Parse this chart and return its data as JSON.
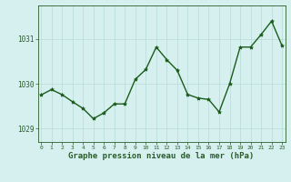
{
  "x": [
    0,
    1,
    2,
    3,
    4,
    5,
    6,
    7,
    8,
    9,
    10,
    11,
    12,
    13,
    14,
    15,
    16,
    17,
    18,
    19,
    20,
    21,
    22,
    23
  ],
  "y": [
    1029.75,
    1029.87,
    1029.76,
    1029.6,
    1029.45,
    1029.22,
    1029.35,
    1029.55,
    1029.55,
    1030.1,
    1030.32,
    1030.82,
    1030.54,
    1030.3,
    1029.76,
    1029.68,
    1029.65,
    1029.37,
    1030.0,
    1030.82,
    1030.82,
    1031.1,
    1031.4,
    1030.85
  ],
  "line_color": "#1a5c1a",
  "marker": "*",
  "marker_size": 3,
  "bg_color": "#d6f0f0",
  "grid_color": "#b8dada",
  "axis_color": "#2a5c2a",
  "xlabel": "Graphe pression niveau de la mer (hPa)",
  "xlabel_fontsize": 6.5,
  "tick_labels": [
    "0",
    "1",
    "2",
    "3",
    "4",
    "5",
    "6",
    "7",
    "8",
    "9",
    "10",
    "11",
    "12",
    "13",
    "14",
    "15",
    "16",
    "17",
    "18",
    "19",
    "20",
    "21",
    "22",
    "23"
  ],
  "yticks": [
    1029,
    1030,
    1031
  ],
  "ylim": [
    1028.7,
    1031.75
  ],
  "xlim": [
    -0.3,
    23.3
  ],
  "linewidth": 1.0
}
